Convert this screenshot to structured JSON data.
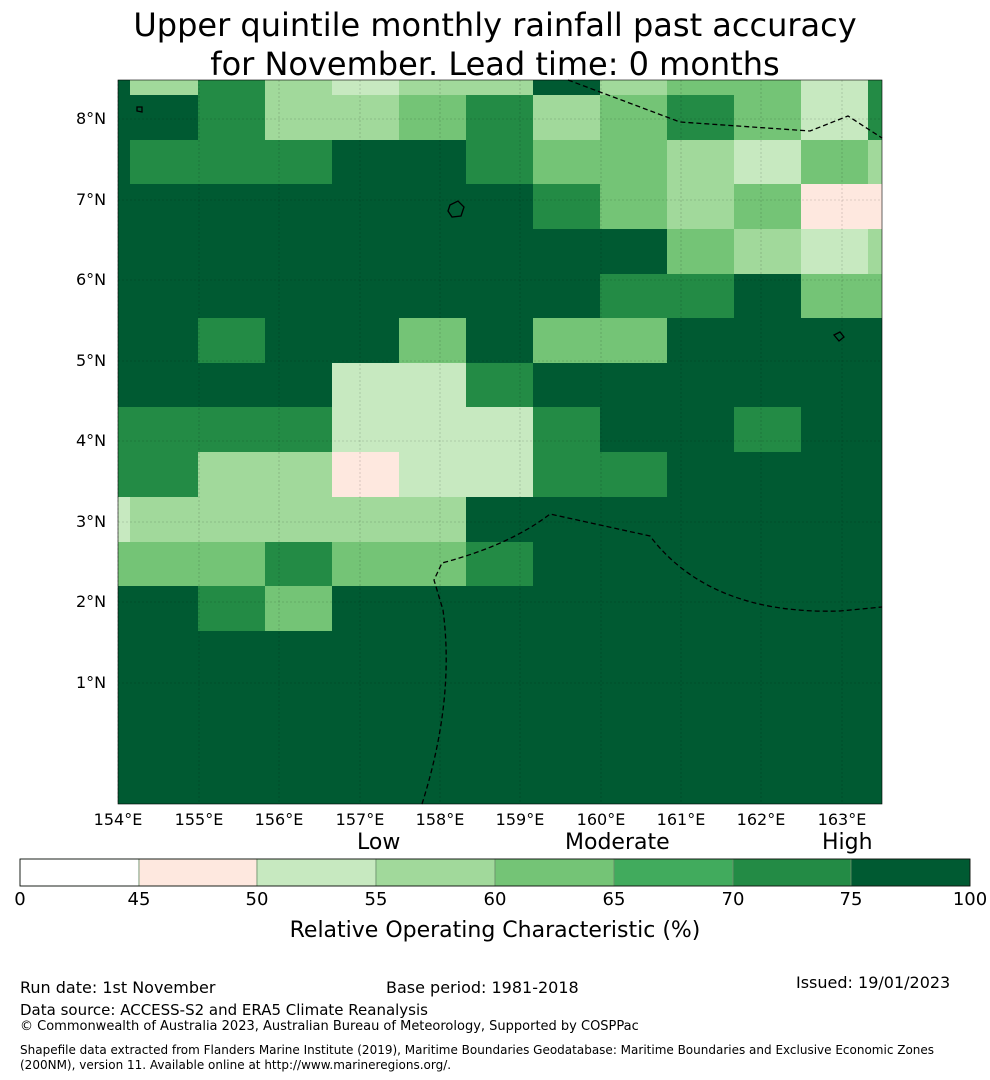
{
  "title": {
    "line1": "Upper quintile monthly rainfall past accuracy",
    "line2": "for November. Lead time: 0 months"
  },
  "map": {
    "lat_labels": [
      "8°N",
      "7°N",
      "6°N",
      "5°N",
      "4°N",
      "3°N",
      "2°N",
      "1°N"
    ],
    "lon_labels": [
      "154°E",
      "155°E",
      "156°E",
      "157°E",
      "158°E",
      "159°E",
      "160°E",
      "161°E",
      "162°E",
      "163°E"
    ],
    "grid_values": [
      [
        75,
        55,
        70,
        55,
        50,
        55,
        55,
        75,
        55,
        60,
        60,
        50,
        70
      ],
      [
        75,
        75,
        70,
        55,
        55,
        60,
        70,
        55,
        60,
        70,
        60,
        50,
        70
      ],
      [
        75,
        70,
        70,
        70,
        75,
        75,
        70,
        60,
        60,
        55,
        50,
        60,
        55
      ],
      [
        75,
        75,
        75,
        75,
        75,
        75,
        75,
        70,
        60,
        55,
        60,
        45,
        45
      ],
      [
        75,
        75,
        75,
        75,
        75,
        75,
        75,
        75,
        75,
        60,
        55,
        50,
        55
      ],
      [
        75,
        75,
        75,
        75,
        75,
        75,
        75,
        75,
        70,
        70,
        75,
        60,
        60
      ],
      [
        75,
        75,
        70,
        75,
        75,
        60,
        75,
        60,
        60,
        75,
        75,
        75,
        75
      ],
      [
        75,
        75,
        75,
        75,
        50,
        50,
        70,
        75,
        75,
        75,
        75,
        75,
        75
      ],
      [
        70,
        70,
        70,
        70,
        50,
        50,
        50,
        70,
        75,
        75,
        70,
        75,
        75
      ],
      [
        70,
        70,
        55,
        55,
        45,
        50,
        50,
        70,
        70,
        75,
        75,
        75,
        75
      ],
      [
        50,
        55,
        55,
        55,
        55,
        55,
        75,
        75,
        75,
        75,
        75,
        75,
        75
      ],
      [
        60,
        60,
        60,
        70,
        60,
        60,
        70,
        75,
        75,
        75,
        75,
        75,
        75
      ],
      [
        75,
        75,
        70,
        60,
        75,
        75,
        75,
        75,
        75,
        75,
        75,
        75,
        75
      ],
      [
        75,
        75,
        75,
        75,
        75,
        75,
        75,
        75,
        75,
        75,
        75,
        75,
        75
      ],
      [
        75,
        75,
        75,
        75,
        75,
        75,
        75,
        75,
        75,
        75,
        75,
        75,
        75
      ],
      [
        75,
        75,
        75,
        75,
        75,
        75,
        75,
        75,
        75,
        75,
        75,
        75,
        75
      ],
      [
        75,
        75,
        75,
        75,
        75,
        75,
        75,
        75,
        75,
        75,
        75,
        75,
        75
      ]
    ]
  },
  "colorbar": {
    "levels": [
      "Low",
      "Moderate",
      "High"
    ],
    "ticks": [
      "0",
      "45",
      "50",
      "55",
      "60",
      "65",
      "70",
      "75",
      "100"
    ],
    "colors": [
      "#ffffff",
      "#fee8df",
      "#c7e9c0",
      "#a1d99b",
      "#74c476",
      "#41ab5d",
      "#238b45",
      "#005a32"
    ],
    "label": "Relative Operating Characteristic (%)"
  },
  "footer": {
    "run_date": "Run date: 1st November",
    "base_period": "Base period: 1981-2018",
    "issued": "Issued: 19/01/2023",
    "data_source": "Data source: ACCESS-S2 and ERA5 Climate Reanalysis",
    "copyright": "© Commonwealth of Australia 2023, Australian Bureau of Meteorology, Supported by COSPPac",
    "shapefile": "Shapefile data extracted from Flanders Marine Institute (2019), Maritime Boundaries Geodatabase: Maritime Boundaries and Exclusive Economic Zones (200NM), version 11. Available online at http://www.marineregions.org/."
  }
}
